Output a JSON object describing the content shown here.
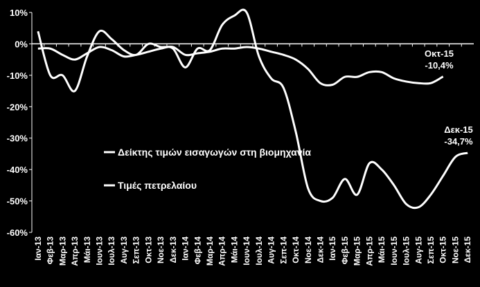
{
  "chart_data": {
    "type": "line",
    "categories": [
      "Ιαν-13",
      "Φεβ-13",
      "Μαρ-13",
      "Απρ-13",
      "Μάι-13",
      "Ιουν-13",
      "Ιουλ-13",
      "Αυγ-13",
      "Σεπ-13",
      "Οκτ-13",
      "Νοε-13",
      "Δεκ-13",
      "Ιαν-14",
      "Φεβ-14",
      "Μαρ-14",
      "Απρ-14",
      "Μάι-14",
      "Ιουν-14",
      "Ιουλ-14",
      "Αυγ-14",
      "Σεπ-14",
      "Οκτ-14",
      "Νοε-14",
      "Δεκ-14",
      "Ιαν-15",
      "Φεβ-15",
      "Μαρ-15",
      "Απρ-15",
      "Μάι-15",
      "Ιουν-15",
      "Ιουλ-15",
      "Αυγ-15",
      "Σεπ-15",
      "Οκτ-15",
      "Νοε-15",
      "Δεκ-15"
    ],
    "series": [
      {
        "name": "Δείκτης τιμών εισαγωγών στη βιομηχανία",
        "color": "#ffffff",
        "values": [
          -1.5,
          -1.5,
          -3.5,
          -5,
          -3,
          -1,
          -2,
          -4,
          -3.5,
          -2.5,
          -1.5,
          -1,
          -3.5,
          -3,
          -2.5,
          -1.5,
          -1.5,
          -1,
          -1.5,
          -2.5,
          -3.5,
          -5,
          -8,
          -12.5,
          -13,
          -10.5,
          -10.5,
          -9,
          -9,
          -11,
          -12,
          -12.5,
          -12.5,
          -10.4,
          null,
          null
        ]
      },
      {
        "name": "Τιμές πετρελαίου",
        "color": "#ffffff",
        "values": [
          4,
          -10,
          -10,
          -15,
          -4,
          4,
          1.5,
          -2,
          -3.5,
          0,
          -1,
          -1.5,
          -7.5,
          -1.5,
          -2,
          6,
          9,
          10,
          -4,
          -11,
          -14,
          -28,
          -46,
          -50,
          -49,
          -43,
          -48,
          -38,
          -40,
          -45,
          -51,
          -52,
          -48,
          -42,
          -36,
          -34.7
        ]
      }
    ],
    "annotations": [
      {
        "label": "Οκτ-15",
        "text": "-10,4%"
      },
      {
        "label": "Δεκ-15",
        "text": "-34,7%"
      }
    ],
    "ylim": [
      -60,
      10
    ],
    "yticks": [
      {
        "value": -60,
        "label": "-60%"
      },
      {
        "value": -50,
        "label": "-50%"
      },
      {
        "value": -40,
        "label": "-40%"
      },
      {
        "value": -30,
        "label": "-30%"
      },
      {
        "value": -20,
        "label": "-20%"
      },
      {
        "value": -10,
        "label": "-10%"
      },
      {
        "value": 0,
        "label": "0%"
      },
      {
        "value": 10,
        "label": "10%"
      }
    ],
    "grid": false
  }
}
